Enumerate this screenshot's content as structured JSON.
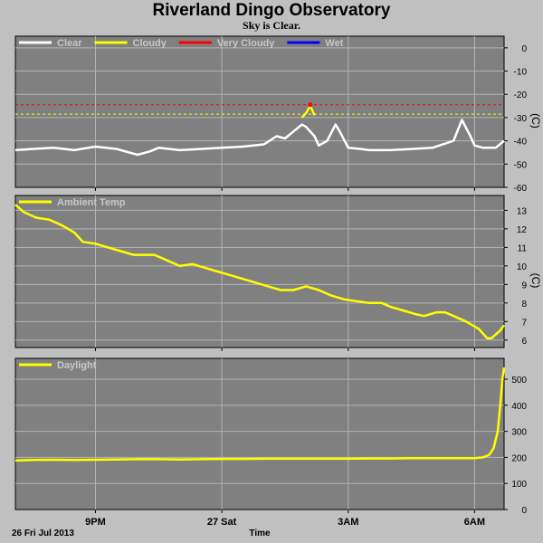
{
  "header": {
    "title": "Riverland Dingo Observatory",
    "subtitle": "Sky is Clear."
  },
  "footer": {
    "date_label": "26 Fri Jul 2013",
    "xlabel": "Time"
  },
  "colors": {
    "plot_bg": "#808080",
    "page_bg": "#c0c0c0",
    "clear": "#ffffff",
    "cloudy": "#ffff00",
    "very_cloudy": "#ff0000",
    "wet": "#0000ff"
  },
  "chart_data": [
    {
      "type": "line",
      "x_axis": {
        "unit": "hours since midnight 26 Jul",
        "range": [
          19.1,
          30.7
        ],
        "ticks": [
          {
            "at": 21,
            "label": "9PM"
          },
          {
            "at": 24,
            "label": "27 Sat"
          },
          {
            "at": 27,
            "label": "3AM"
          },
          {
            "at": 30,
            "label": "6AM"
          }
        ]
      },
      "ylim": [
        -60,
        5
      ],
      "yticks": [
        0,
        -10,
        -20,
        -30,
        -40,
        -50,
        -60
      ],
      "yunit": "(C)",
      "grid": true,
      "legend": [
        "Clear",
        "Cloudy",
        "Very Cloudy",
        "Wet"
      ],
      "thresholds": [
        {
          "name": "Very Cloudy",
          "value": -24.5,
          "style": "dashed"
        },
        {
          "name": "Cloudy",
          "value": -28.5,
          "style": "dashed"
        }
      ],
      "series": [
        {
          "name": "Clear",
          "x": [
            19.1,
            19.5,
            20.0,
            20.5,
            21.0,
            21.5,
            21.8,
            22.0,
            22.3,
            22.5,
            23.0,
            23.5,
            24.0,
            24.5,
            25.0,
            25.3,
            25.5,
            25.7,
            25.9,
            26.0,
            26.2,
            26.3,
            26.5,
            26.7,
            26.8,
            27.0,
            27.3,
            27.5,
            28.0,
            28.5,
            29.0,
            29.5,
            29.7,
            29.9,
            30.0,
            30.2,
            30.5,
            30.7
          ],
          "y": [
            -44,
            -43.5,
            -43,
            -44,
            -42.5,
            -43.5,
            -45,
            -46,
            -44.5,
            -43,
            -44,
            -43.5,
            -43,
            -42.5,
            -41.5,
            -38,
            -39,
            -36,
            -33,
            -34,
            -38,
            -42,
            -40,
            -33,
            -36,
            -43,
            -43.5,
            -44,
            -44,
            -43.5,
            -43,
            -40,
            -31,
            -38,
            -42,
            -43,
            -43,
            -40
          ]
        },
        {
          "name": "Cloudy",
          "x": [
            25.9,
            26.0,
            26.1,
            26.2
          ],
          "y": [
            -30,
            -28,
            -25,
            -29
          ]
        },
        {
          "name": "Very Cloudy",
          "x": [
            26.1
          ],
          "y": [
            -24.5
          ]
        }
      ]
    },
    {
      "type": "line",
      "x_axis": {
        "unit": "hours since midnight 26 Jul",
        "range": [
          19.1,
          30.7
        ],
        "ticks": [
          {
            "at": 21,
            "label": "9PM"
          },
          {
            "at": 24,
            "label": "27 Sat"
          },
          {
            "at": 27,
            "label": "3AM"
          },
          {
            "at": 30,
            "label": "6AM"
          }
        ]
      },
      "ylim": [
        5.6,
        13.8
      ],
      "yticks": [
        13,
        12,
        11,
        10,
        9,
        8,
        7,
        6
      ],
      "yunit": "(C)",
      "grid": true,
      "legend": [
        "Ambient Temp"
      ],
      "series": [
        {
          "name": "Ambient Temp",
          "x": [
            19.1,
            19.3,
            19.6,
            19.9,
            20.2,
            20.5,
            20.7,
            21.0,
            21.3,
            21.6,
            21.9,
            22.2,
            22.4,
            22.7,
            23.0,
            23.3,
            23.6,
            23.9,
            24.2,
            24.5,
            24.8,
            25.1,
            25.4,
            25.7,
            26.0,
            26.3,
            26.6,
            26.9,
            27.2,
            27.5,
            27.8,
            28.0,
            28.3,
            28.6,
            28.8,
            29.1,
            29.3,
            29.6,
            29.8,
            30.1,
            30.3,
            30.4,
            30.6,
            30.7
          ],
          "y": [
            13.3,
            12.9,
            12.6,
            12.5,
            12.2,
            11.8,
            11.3,
            11.2,
            11,
            10.8,
            10.6,
            10.6,
            10.6,
            10.3,
            10,
            10.1,
            9.9,
            9.7,
            9.5,
            9.3,
            9.1,
            8.9,
            8.7,
            8.7,
            8.9,
            8.7,
            8.4,
            8.2,
            8.1,
            8.0,
            8.0,
            7.8,
            7.6,
            7.4,
            7.3,
            7.5,
            7.5,
            7.2,
            7.0,
            6.6,
            6.1,
            6.1,
            6.5,
            6.8
          ]
        }
      ]
    },
    {
      "type": "line",
      "x_axis": {
        "unit": "hours since midnight 26 Jul",
        "range": [
          19.1,
          30.7
        ],
        "ticks": [
          {
            "at": 21,
            "label": "9PM"
          },
          {
            "at": 24,
            "label": "27 Sat"
          },
          {
            "at": 27,
            "label": "3AM"
          },
          {
            "at": 30,
            "label": "6AM"
          }
        ]
      },
      "ylim": [
        0,
        580
      ],
      "yticks": [
        500,
        400,
        300,
        200,
        100,
        0
      ],
      "grid": true,
      "legend": [
        "Daylight"
      ],
      "series": [
        {
          "name": "Daylight",
          "x": [
            19.1,
            19.5,
            20.0,
            20.5,
            21.0,
            21.5,
            22.0,
            22.5,
            23.0,
            23.5,
            24.0,
            24.5,
            25.0,
            25.5,
            26.0,
            26.5,
            27.0,
            27.5,
            28.0,
            28.5,
            29.0,
            29.5,
            30.0,
            30.2,
            30.35,
            30.45,
            30.55,
            30.62,
            30.66,
            30.7
          ],
          "y": [
            188,
            190,
            191,
            190,
            191,
            192,
            193,
            193,
            192,
            193,
            194,
            194,
            195,
            195,
            195,
            195,
            195,
            196,
            196,
            197,
            197,
            197,
            197,
            200,
            210,
            235,
            300,
            420,
            500,
            545
          ]
        }
      ]
    }
  ]
}
